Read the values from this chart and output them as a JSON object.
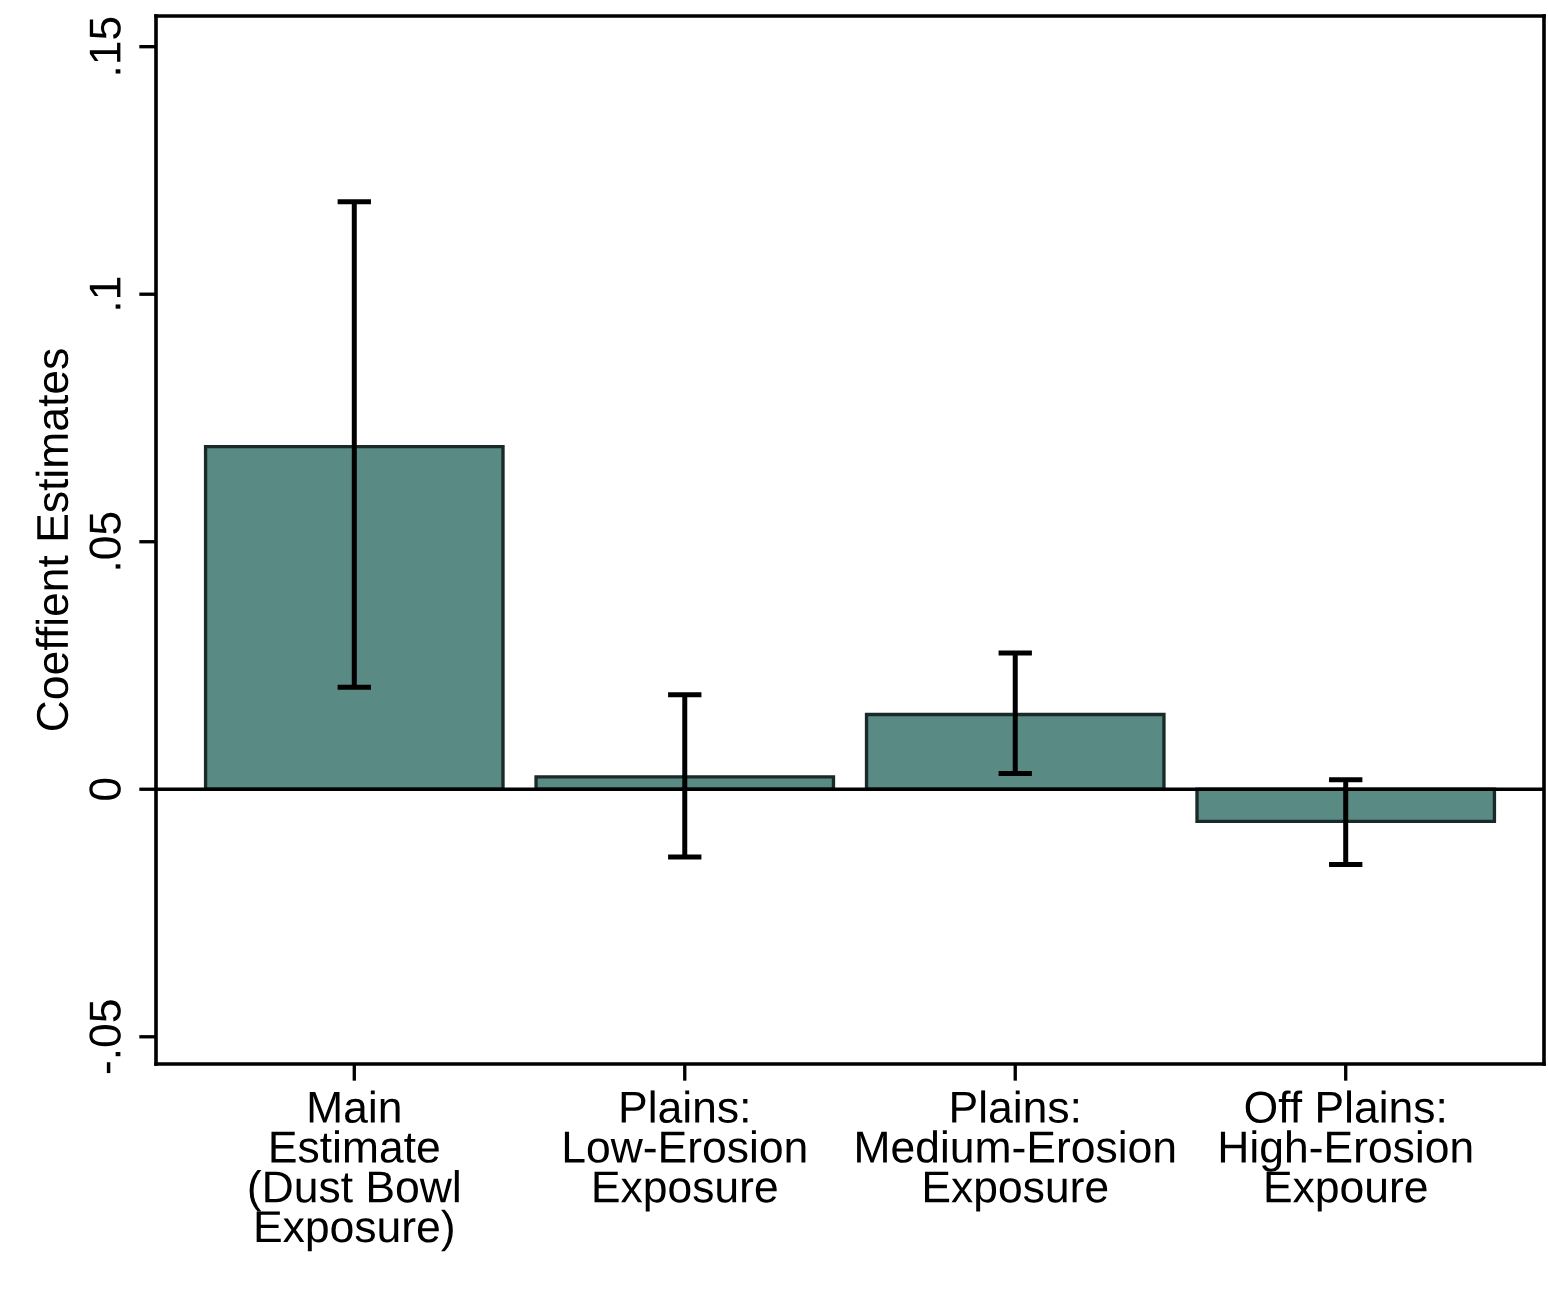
{
  "chart_data": {
    "type": "bar",
    "ylabel": "Coeffient Estimates",
    "categories": [
      "Main\nEstimate\n(Dust Bowl\nExposure)",
      "Plains:\nLow-Erosion\nExposure",
      "Plains:\nMedium-Erosion\nExposure",
      "Off Plains:\nHigh-Erosion\nExpoure"
    ],
    "values": [
      0.0692,
      0.0025,
      0.0151,
      -0.0065
    ],
    "errors": [
      [
        0.0206,
        0.1187
      ],
      [
        -0.0137,
        0.0191
      ],
      [
        0.0032,
        0.0275
      ],
      [
        -0.0152,
        0.0019
      ]
    ],
    "color": "#5a8a84",
    "ylim": [
      -0.0555,
      0.1562
    ],
    "yticks": [
      {
        "value": -0.05,
        "label": "-.05"
      },
      {
        "value": 0,
        "label": "0"
      },
      {
        "value": 0.05,
        "label": ".05"
      },
      {
        "value": 0.1,
        "label": ".1"
      },
      {
        "value": 0.15,
        "label": ".15"
      }
    ],
    "ref_lines": [
      {
        "axis": "y",
        "value": 0,
        "color": "#000000"
      }
    ],
    "grid": false,
    "legend": false
  }
}
